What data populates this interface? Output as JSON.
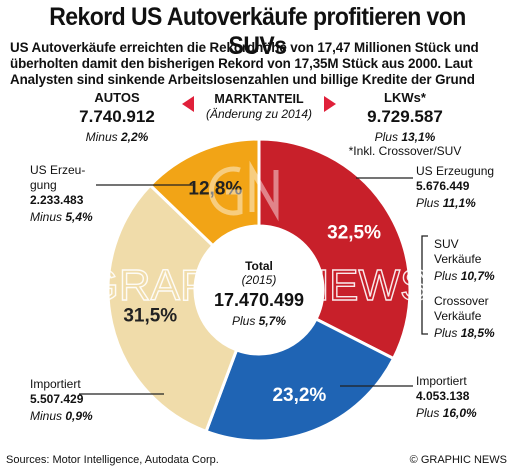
{
  "title": "Rekord US Autoverkäufe profitieren von SUVs",
  "subtitle": "US Autoverkäufe erreichten die Rekordhöhe von 17,47 Millionen Stück und überholten damit den bisherigen Rekord von 17,35M Stück  aus 2000. Laut Analysten sind sinkende Arbeitslosenzahlen und billige Kredite der Grund",
  "autos": {
    "label": "AUTOS",
    "value": "7.740.912",
    "change_label": "Minus",
    "change": "2,2%"
  },
  "market_share": {
    "label": "MARKTANTEIL",
    "note": "(Änderung zu 2014)"
  },
  "lkws": {
    "label": "LKWs*",
    "value": "9.729.587",
    "change_label": "Plus",
    "change": "13,1%",
    "footnote": "*Inkl. Crossover/SUV"
  },
  "segments": {
    "us_production_autos": {
      "label_line1": "US Erzeu-",
      "label_line2": "gung",
      "value": "2.233.483",
      "change_label": "Minus",
      "change": "5,4%"
    },
    "imported_autos": {
      "label": "Importiert",
      "value": "5.507.429",
      "change_label": "Minus",
      "change": "0,9%"
    },
    "us_production_lkws": {
      "label": "US Erzeugung",
      "value": "5.676.449",
      "change_label": "Plus",
      "change": "11,1%"
    },
    "imported_lkws": {
      "label": "Importiert",
      "value": "4.053.138",
      "change_label": "Plus",
      "change": "16,0%"
    },
    "suv": {
      "label_line1": "SUV",
      "label_line2": "Verkäufe",
      "change_label": "Plus",
      "change": "10,7%"
    },
    "crossover": {
      "label_line1": "Crossover",
      "label_line2": "Verkäufe",
      "change_label": "Plus",
      "change": "18,5%"
    }
  },
  "total": {
    "label": "Total",
    "year": "(2015)",
    "value": "17.470.499",
    "change_label": "Plus",
    "change": "5,7%"
  },
  "watermark": "GRAPHIC NEWS",
  "footer": {
    "sources": "Sources: Motor Intelligence, Autodata Corp.",
    "credit": "© GRAPHIC NEWS"
  },
  "chart_data": {
    "type": "pie",
    "categories": [
      "US Erzeugung (LKWs)",
      "Importiert (LKWs)",
      "Importiert (Autos)",
      "US Erzeugung (Autos)"
    ],
    "values": [
      32.5,
      23.2,
      31.5,
      12.8
    ],
    "labels": [
      "32,5%",
      "23,2%",
      "31,5%",
      "12,8%"
    ],
    "colors": [
      "#c8202a",
      "#1f64b4",
      "#f0dcaa",
      "#f2a416"
    ],
    "accent": "#e0203a"
  }
}
